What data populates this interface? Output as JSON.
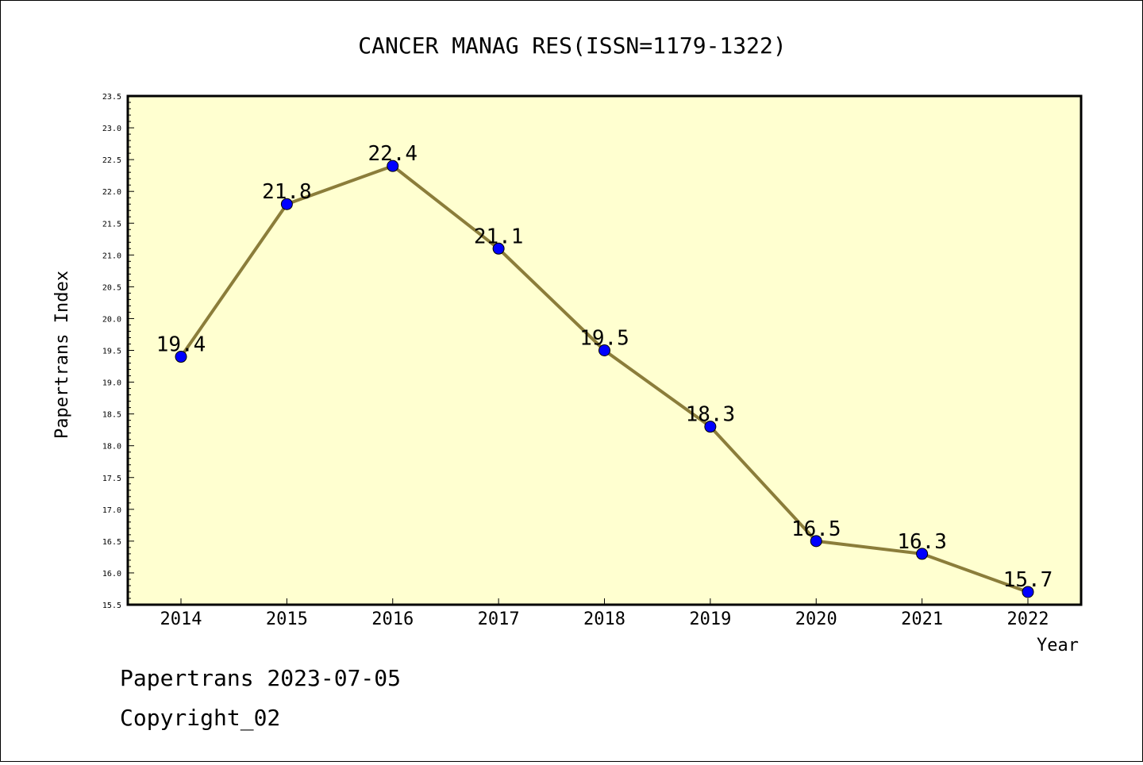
{
  "chart_data": {
    "type": "line",
    "title": "CANCER MANAG RES(ISSN=1179-1322)",
    "xlabel": "Year",
    "ylabel": "Papertrans Index",
    "categories": [
      "2014",
      "2015",
      "2016",
      "2017",
      "2018",
      "2019",
      "2020",
      "2021",
      "2022"
    ],
    "series": [
      {
        "values": [
          19.4,
          21.8,
          22.4,
          21.1,
          19.5,
          18.3,
          16.5,
          16.3,
          15.7
        ]
      }
    ],
    "data_labels": [
      "19.4",
      "21.8",
      "22.4",
      "21.1",
      "19.5",
      "18.3",
      "16.5",
      "16.3",
      "15.7"
    ],
    "ylim": [
      15.5,
      23.5
    ],
    "yticks": [
      "15.5",
      "16.0",
      "16.5",
      "17.0",
      "17.5",
      "18.0",
      "18.5",
      "19.0",
      "19.5",
      "20.0",
      "20.5",
      "21.0",
      "21.5",
      "22.0",
      "22.5",
      "23.0",
      "23.5"
    ],
    "grid": false,
    "colors": {
      "plot_background": "#ffffd0",
      "line": "#8b7d3a",
      "marker": "#0000ff"
    }
  },
  "footer": {
    "line1": "Papertrans 2023-07-05",
    "line2": "Copyright_02"
  }
}
